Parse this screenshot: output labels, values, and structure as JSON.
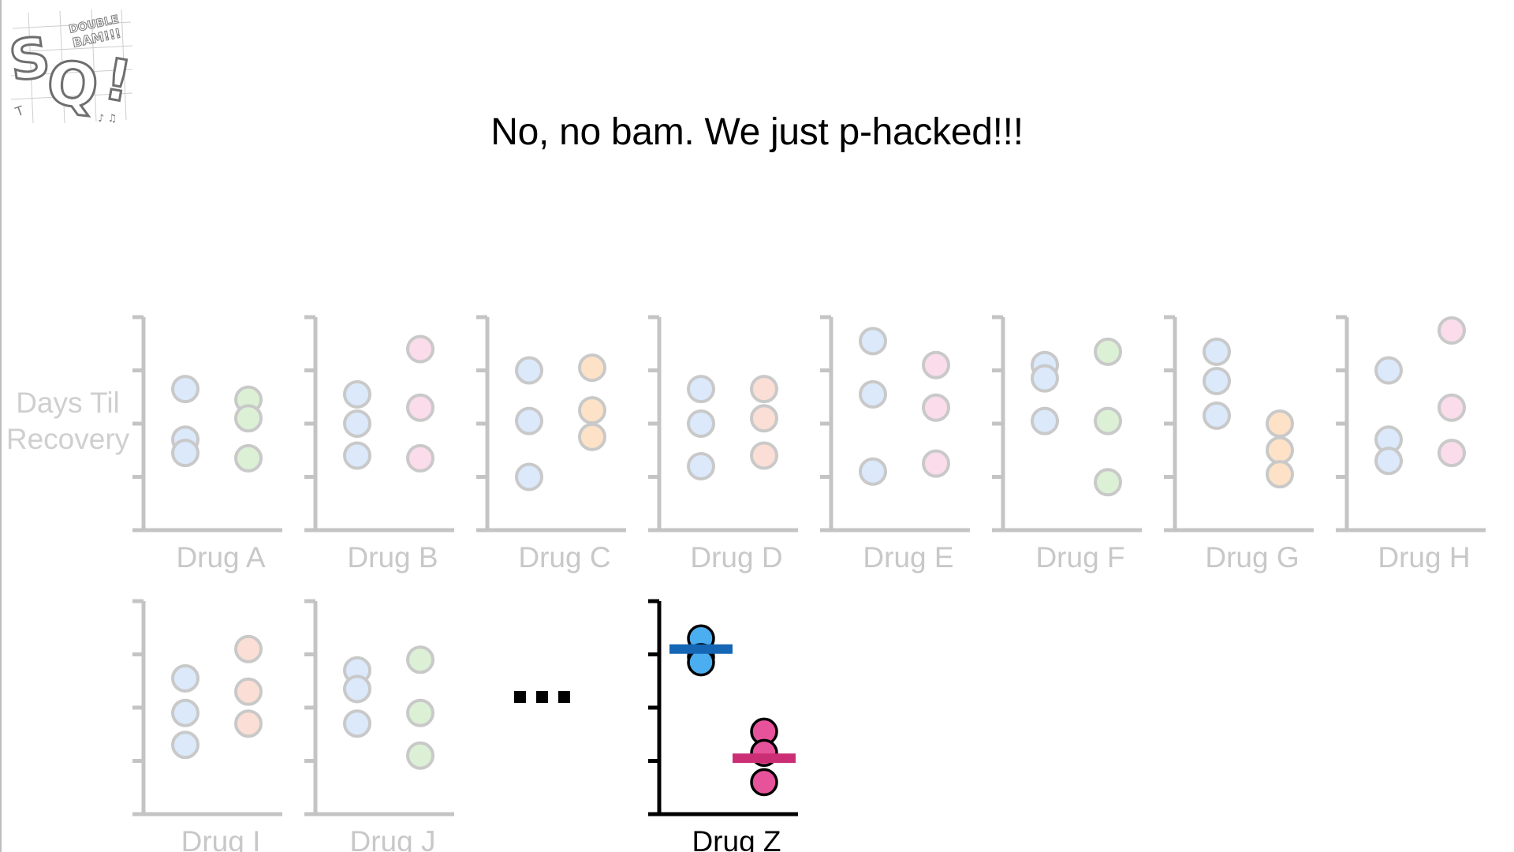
{
  "headline": "No, no bam. We just p-hacked!!!",
  "logo": {
    "text_main": "SQ!",
    "text_small": "DOUBLE BAM!!!"
  },
  "y_axis_label": {
    "line1": "Days Til",
    "line2": "Recovery"
  },
  "ellipsis": "...",
  "colors": {
    "faded_axis": "#c4c4c4",
    "faded_label": "#c8c8c8",
    "faded_blue": "#dbe9fb",
    "faded_green": "#dcf0d5",
    "faded_pink": "#fadcea",
    "faded_orange": "#fde2c7",
    "faded_salmon": "#fbded5",
    "faded_outline": "#c9c9c9",
    "blue": "#4aaef0",
    "blue_mean": "#1566b5",
    "pink": "#e7539a",
    "pink_mean": "#cc2e76",
    "dark": "#000000"
  },
  "chart_data": [
    {
      "type": "scatter",
      "xlabel": "Drug A",
      "ylim": [
        0,
        4
      ],
      "faded": true,
      "series": [
        {
          "group": "left",
          "color": "faded_blue",
          "values": [
            2.65,
            1.7,
            1.45
          ]
        },
        {
          "group": "right",
          "color": "faded_green",
          "values": [
            2.45,
            2.1,
            1.35
          ]
        }
      ]
    },
    {
      "type": "scatter",
      "xlabel": "Drug B",
      "ylim": [
        0,
        4
      ],
      "faded": true,
      "series": [
        {
          "group": "left",
          "color": "faded_blue",
          "values": [
            2.55,
            2.0,
            1.4
          ]
        },
        {
          "group": "right",
          "color": "faded_pink",
          "values": [
            3.4,
            2.3,
            1.35
          ]
        }
      ]
    },
    {
      "type": "scatter",
      "xlabel": "Drug C",
      "ylim": [
        0,
        4
      ],
      "faded": true,
      "series": [
        {
          "group": "left",
          "color": "faded_blue",
          "values": [
            3.0,
            2.05,
            1.0
          ]
        },
        {
          "group": "right",
          "color": "faded_orange",
          "values": [
            3.05,
            2.25,
            1.75
          ]
        }
      ]
    },
    {
      "type": "scatter",
      "xlabel": "Drug D",
      "ylim": [
        0,
        4
      ],
      "faded": true,
      "series": [
        {
          "group": "left",
          "color": "faded_blue",
          "values": [
            2.65,
            2.0,
            1.2
          ]
        },
        {
          "group": "right",
          "color": "faded_salmon",
          "values": [
            2.65,
            2.1,
            1.4
          ]
        }
      ]
    },
    {
      "type": "scatter",
      "xlabel": "Drug E",
      "ylim": [
        0,
        4
      ],
      "faded": true,
      "series": [
        {
          "group": "left",
          "color": "faded_blue",
          "values": [
            3.55,
            2.55,
            1.1
          ]
        },
        {
          "group": "right",
          "color": "faded_pink",
          "values": [
            3.1,
            2.3,
            1.25
          ]
        }
      ]
    },
    {
      "type": "scatter",
      "xlabel": "Drug F",
      "ylim": [
        0,
        4
      ],
      "faded": true,
      "series": [
        {
          "group": "left",
          "color": "faded_blue",
          "values": [
            3.1,
            2.85,
            2.05
          ]
        },
        {
          "group": "right",
          "color": "faded_green",
          "values": [
            3.35,
            2.05,
            0.9
          ]
        }
      ]
    },
    {
      "type": "scatter",
      "xlabel": "Drug G",
      "ylim": [
        0,
        4
      ],
      "faded": true,
      "series": [
        {
          "group": "left",
          "color": "faded_blue",
          "values": [
            3.35,
            2.8,
            2.15
          ]
        },
        {
          "group": "right",
          "color": "faded_orange",
          "values": [
            2.0,
            1.5,
            1.05
          ]
        }
      ]
    },
    {
      "type": "scatter",
      "xlabel": "Drug H",
      "ylim": [
        0,
        4
      ],
      "faded": true,
      "series": [
        {
          "group": "left",
          "color": "faded_blue",
          "values": [
            3.0,
            1.7,
            1.3
          ]
        },
        {
          "group": "right",
          "color": "faded_pink",
          "values": [
            3.75,
            2.3,
            1.45
          ]
        }
      ]
    },
    {
      "type": "scatter",
      "xlabel": "Drug I",
      "ylim": [
        0,
        4
      ],
      "faded": true,
      "series": [
        {
          "group": "left",
          "color": "faded_blue",
          "values": [
            2.55,
            1.9,
            1.3
          ]
        },
        {
          "group": "right",
          "color": "faded_salmon",
          "values": [
            3.1,
            2.3,
            1.7
          ]
        }
      ]
    },
    {
      "type": "scatter",
      "xlabel": "Drug J",
      "ylim": [
        0,
        4
      ],
      "faded": true,
      "series": [
        {
          "group": "left",
          "color": "faded_blue",
          "values": [
            2.7,
            2.35,
            1.7
          ]
        },
        {
          "group": "right",
          "color": "faded_green",
          "values": [
            2.9,
            1.9,
            1.1
          ]
        }
      ]
    },
    {
      "type": "scatter",
      "xlabel": "Drug Z",
      "ylim": [
        0,
        4
      ],
      "faded": false,
      "series": [
        {
          "group": "left",
          "color": "blue",
          "mean_color": "blue_mean",
          "values": [
            3.3,
            2.95,
            2.85
          ],
          "mean": 3.1
        },
        {
          "group": "right",
          "color": "pink",
          "mean_color": "pink_mean",
          "values": [
            1.55,
            1.15,
            0.6
          ],
          "mean": 1.05
        }
      ]
    }
  ]
}
